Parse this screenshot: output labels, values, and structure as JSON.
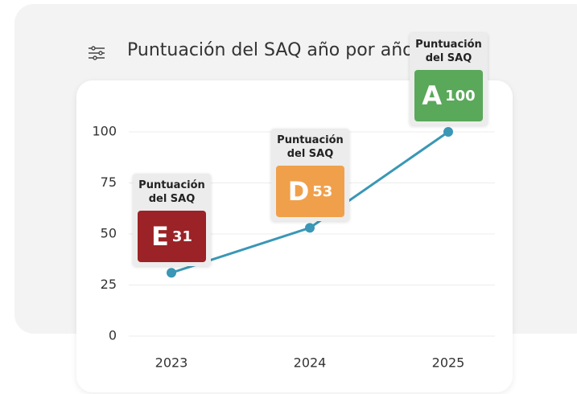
{
  "chart_data": {
    "type": "line",
    "title": "Puntuación del SAQ año por año",
    "categories": [
      "2023",
      "2024",
      "2025"
    ],
    "series": [
      {
        "name": "Puntuación del SAQ",
        "color": "#3a97b6",
        "values": [
          31,
          53,
          100
        ]
      }
    ],
    "grades": [
      "E",
      "D",
      "A"
    ],
    "grade_colors": [
      "#9b2226",
      "#f0a04b",
      "#5aa85a"
    ],
    "ylim": [
      0,
      100
    ],
    "yticks": [
      0,
      25,
      50,
      75,
      100
    ],
    "grid": true
  }
}
